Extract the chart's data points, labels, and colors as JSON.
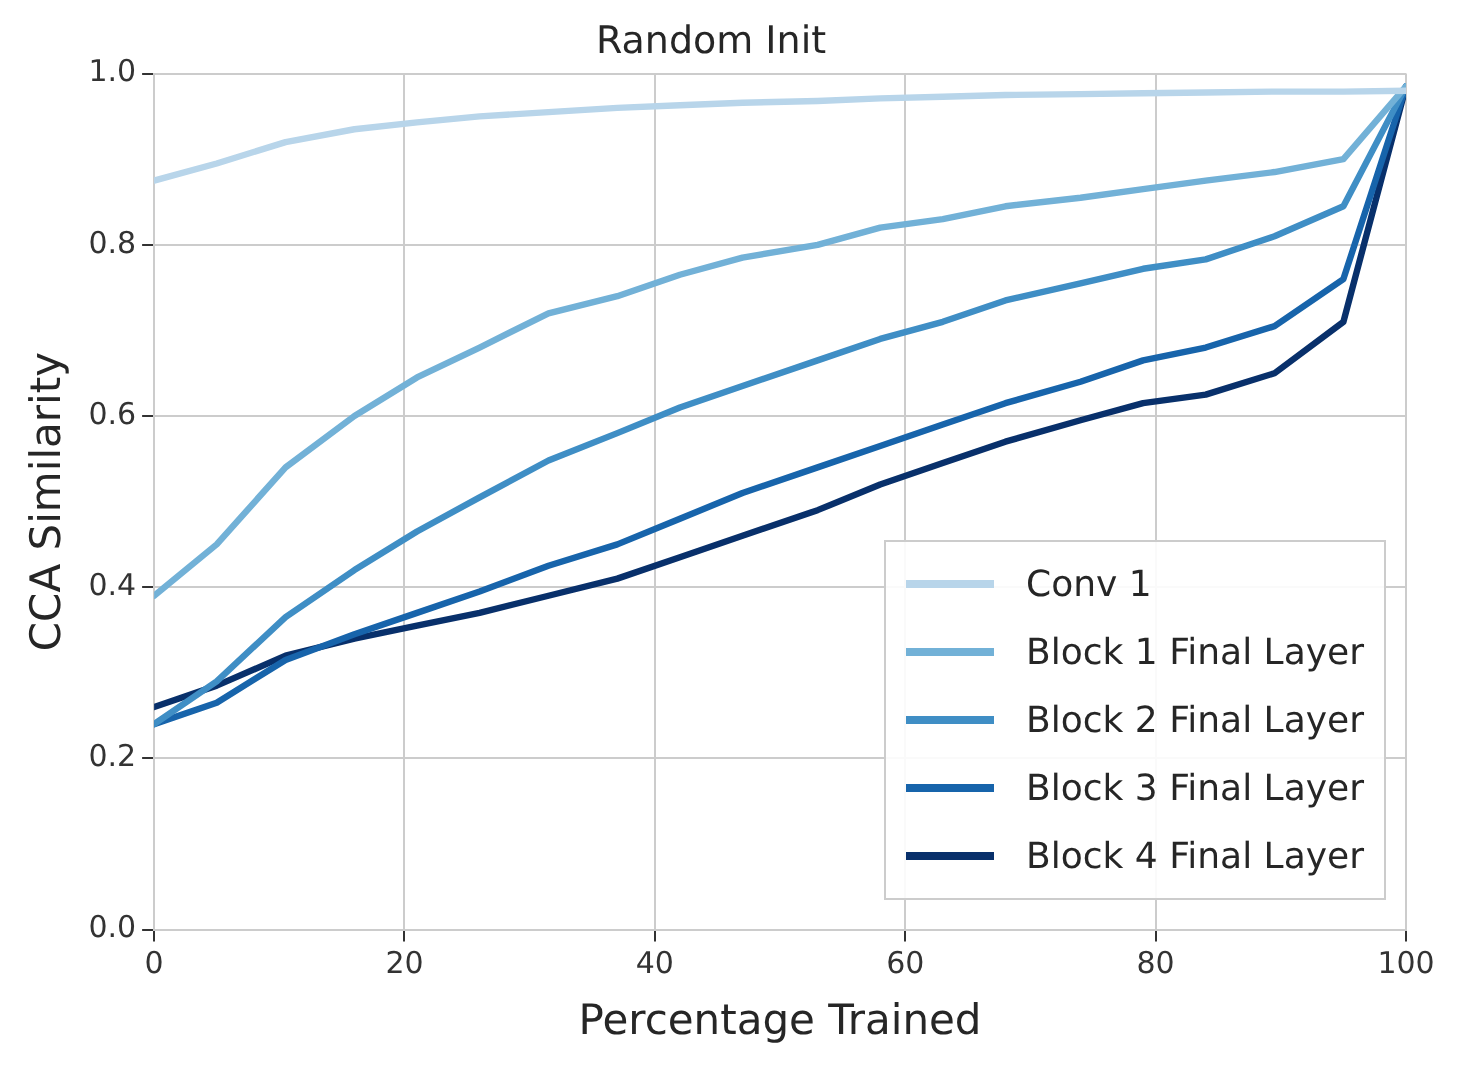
{
  "chart_data": {
    "type": "line",
    "title": "Random Init",
    "xlabel": "Percentage Trained",
    "ylabel": "CCA Similarity",
    "x": [
      0,
      5,
      10.5,
      16,
      21,
      26,
      31.5,
      37,
      42,
      47,
      53,
      58,
      63,
      68,
      74,
      79,
      84,
      89.5,
      95,
      100
    ],
    "series": [
      {
        "name": "Conv 1",
        "color": "#b8d5ea",
        "values": [
          0.875,
          0.895,
          0.92,
          0.935,
          0.943,
          0.95,
          0.955,
          0.96,
          0.963,
          0.966,
          0.968,
          0.971,
          0.973,
          0.975,
          0.976,
          0.977,
          0.978,
          0.979,
          0.979,
          0.98
        ]
      },
      {
        "name": "Block 1 Final Layer",
        "color": "#72b1d7",
        "values": [
          0.39,
          0.45,
          0.54,
          0.6,
          0.645,
          0.68,
          0.72,
          0.74,
          0.765,
          0.785,
          0.8,
          0.82,
          0.83,
          0.845,
          0.855,
          0.865,
          0.875,
          0.885,
          0.9,
          0.985
        ]
      },
      {
        "name": "Block 2 Final Layer",
        "color": "#3f8ec5",
        "values": [
          0.24,
          0.29,
          0.365,
          0.42,
          0.465,
          0.505,
          0.548,
          0.58,
          0.61,
          0.635,
          0.665,
          0.69,
          0.71,
          0.735,
          0.755,
          0.772,
          0.783,
          0.81,
          0.845,
          0.985
        ]
      },
      {
        "name": "Block 3 Final Layer",
        "color": "#1764ab",
        "values": [
          0.24,
          0.265,
          0.315,
          0.345,
          0.37,
          0.395,
          0.425,
          0.45,
          0.48,
          0.51,
          0.54,
          0.565,
          0.59,
          0.615,
          0.64,
          0.665,
          0.68,
          0.705,
          0.76,
          0.985
        ]
      },
      {
        "name": "Block 4 Final Layer",
        "color": "#08306b",
        "values": [
          0.26,
          0.285,
          0.32,
          0.34,
          0.355,
          0.37,
          0.39,
          0.41,
          0.435,
          0.46,
          0.49,
          0.52,
          0.545,
          0.57,
          0.595,
          0.615,
          0.625,
          0.65,
          0.71,
          0.985
        ]
      }
    ],
    "xlim": [
      0,
      100
    ],
    "xticks": [
      0,
      20,
      40,
      60,
      80,
      100
    ],
    "ylim": [
      0,
      1
    ],
    "yticks": [
      {
        "value": 0,
        "label": "0.0"
      },
      {
        "value": 0.2,
        "label": "0.2"
      },
      {
        "value": 0.4,
        "label": "0.4"
      },
      {
        "value": 0.6,
        "label": "0.6"
      },
      {
        "value": 0.8,
        "label": "0.8"
      },
      {
        "value": 1,
        "label": "1.0"
      }
    ],
    "grid": true,
    "legend": "bottom right",
    "marker": "none",
    "line_style": "solid"
  }
}
